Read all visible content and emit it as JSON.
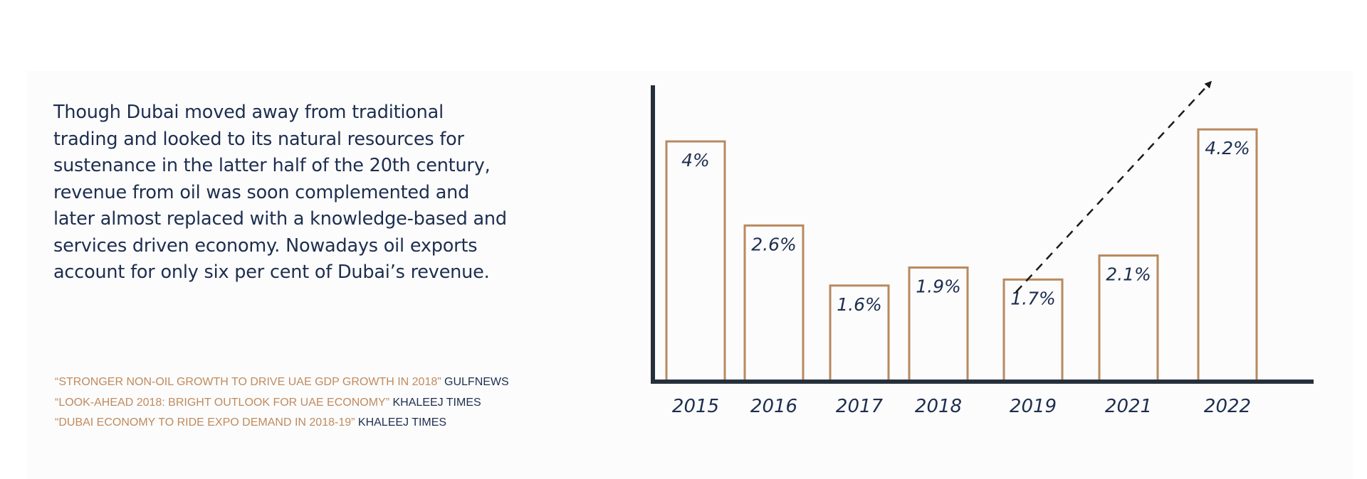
{
  "paragraph": "Though Dubai moved away from traditional trading and looked to its natural resources for sustenance in the latter half of the 20th century, revenue from oil was soon complemented and later almost replaced with a knowledge-based and services driven economy. Nowadays oil exports account for only six per cent of Dubai’s revenue.",
  "sources": [
    {
      "headline": "“STRONGER NON-OIL GROWTH TO DRIVE UAE GDP GROWTH IN 2018”",
      "outlet": "GULFNEWS"
    },
    {
      "headline": "“LOOK-AHEAD 2018: BRIGHT OUTLOOK FOR UAE ECONOMY”",
      "outlet": "KHALEEJ TIMES"
    },
    {
      "headline": "“DUBAI ECONOMY TO RIDE EXPO DEMAND IN 2018-19”",
      "outlet": "KHALEEJ TIMES"
    }
  ],
  "colors": {
    "text": "#1d2e4f",
    "accent": "#c08a5e",
    "axis": "#26303d",
    "bar_outline": "#b9895f"
  },
  "chart_data": {
    "type": "bar",
    "categories": [
      "2015",
      "2016",
      "2017",
      "2018",
      "2019",
      "2021",
      "2022"
    ],
    "values": [
      4,
      2.6,
      1.6,
      1.9,
      1.7,
      2.1,
      4.2
    ],
    "data_labels": [
      "4%",
      "2.6%",
      "1.6%",
      "1.9%",
      "1.7%",
      "2.1%",
      "4.2%"
    ],
    "title": "",
    "xlabel": "",
    "ylabel": "",
    "ylim": [
      0,
      4.6
    ],
    "bar_style": "outline",
    "grid": false,
    "trend_arrow": "dashed, rising toward 2022"
  }
}
